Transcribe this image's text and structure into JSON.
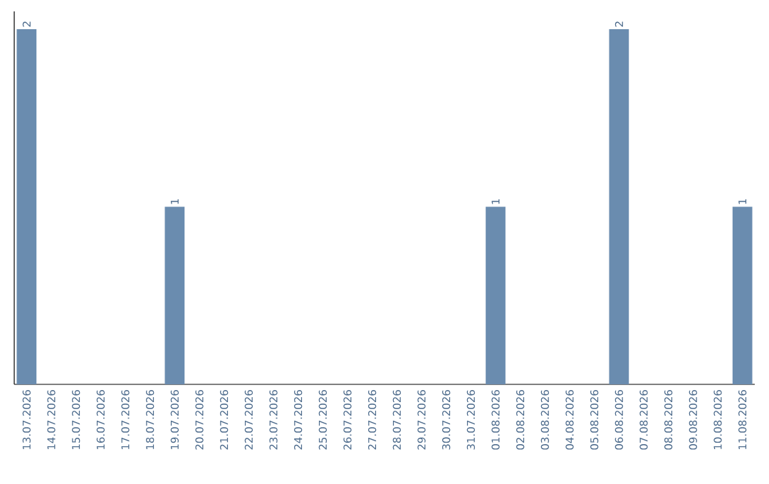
{
  "chart_data": {
    "type": "bar",
    "categories": [
      "13.07.2026",
      "14.07.2026",
      "15.07.2026",
      "16.07.2026",
      "17.07.2026",
      "18.07.2026",
      "19.07.2026",
      "20.07.2026",
      "21.07.2026",
      "22.07.2026",
      "23.07.2026",
      "24.07.2026",
      "25.07.2026",
      "26.07.2026",
      "27.07.2026",
      "28.07.2026",
      "29.07.2026",
      "30.07.2026",
      "31.07.2026",
      "01.08.2026",
      "02.08.2026",
      "03.08.2026",
      "04.08.2026",
      "05.08.2026",
      "06.08.2026",
      "07.08.2026",
      "08.08.2026",
      "09.08.2026",
      "10.08.2026",
      "11.08.2026"
    ],
    "values": [
      2,
      0,
      0,
      0,
      0,
      0,
      1,
      0,
      0,
      0,
      0,
      0,
      0,
      0,
      0,
      0,
      0,
      0,
      0,
      1,
      0,
      0,
      0,
      0,
      2,
      0,
      0,
      0,
      0,
      1
    ],
    "value_labels": [
      "2",
      null,
      null,
      null,
      null,
      null,
      "1",
      null,
      null,
      null,
      null,
      null,
      null,
      null,
      null,
      null,
      null,
      null,
      null,
      "1",
      null,
      null,
      null,
      null,
      "2",
      null,
      null,
      null,
      null,
      "1"
    ],
    "color": "#6a8caf"
  }
}
